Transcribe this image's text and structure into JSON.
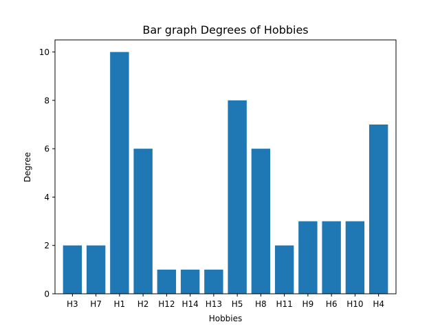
{
  "chart_data": {
    "type": "bar",
    "title": "Bar graph Degrees of Hobbies",
    "xlabel": "Hobbies",
    "ylabel": "Degree",
    "categories": [
      "H3",
      "H7",
      "H1",
      "H2",
      "H12",
      "H14",
      "H13",
      "H5",
      "H8",
      "H11",
      "H9",
      "H6",
      "H10",
      "H4"
    ],
    "values": [
      2,
      2,
      10,
      6,
      1,
      1,
      1,
      8,
      6,
      2,
      3,
      3,
      3,
      7
    ],
    "ylim": [
      0,
      10.5
    ],
    "yticks": [
      0,
      2,
      4,
      6,
      8,
      10
    ],
    "grid": false,
    "bar_color": "#1f77b4"
  }
}
